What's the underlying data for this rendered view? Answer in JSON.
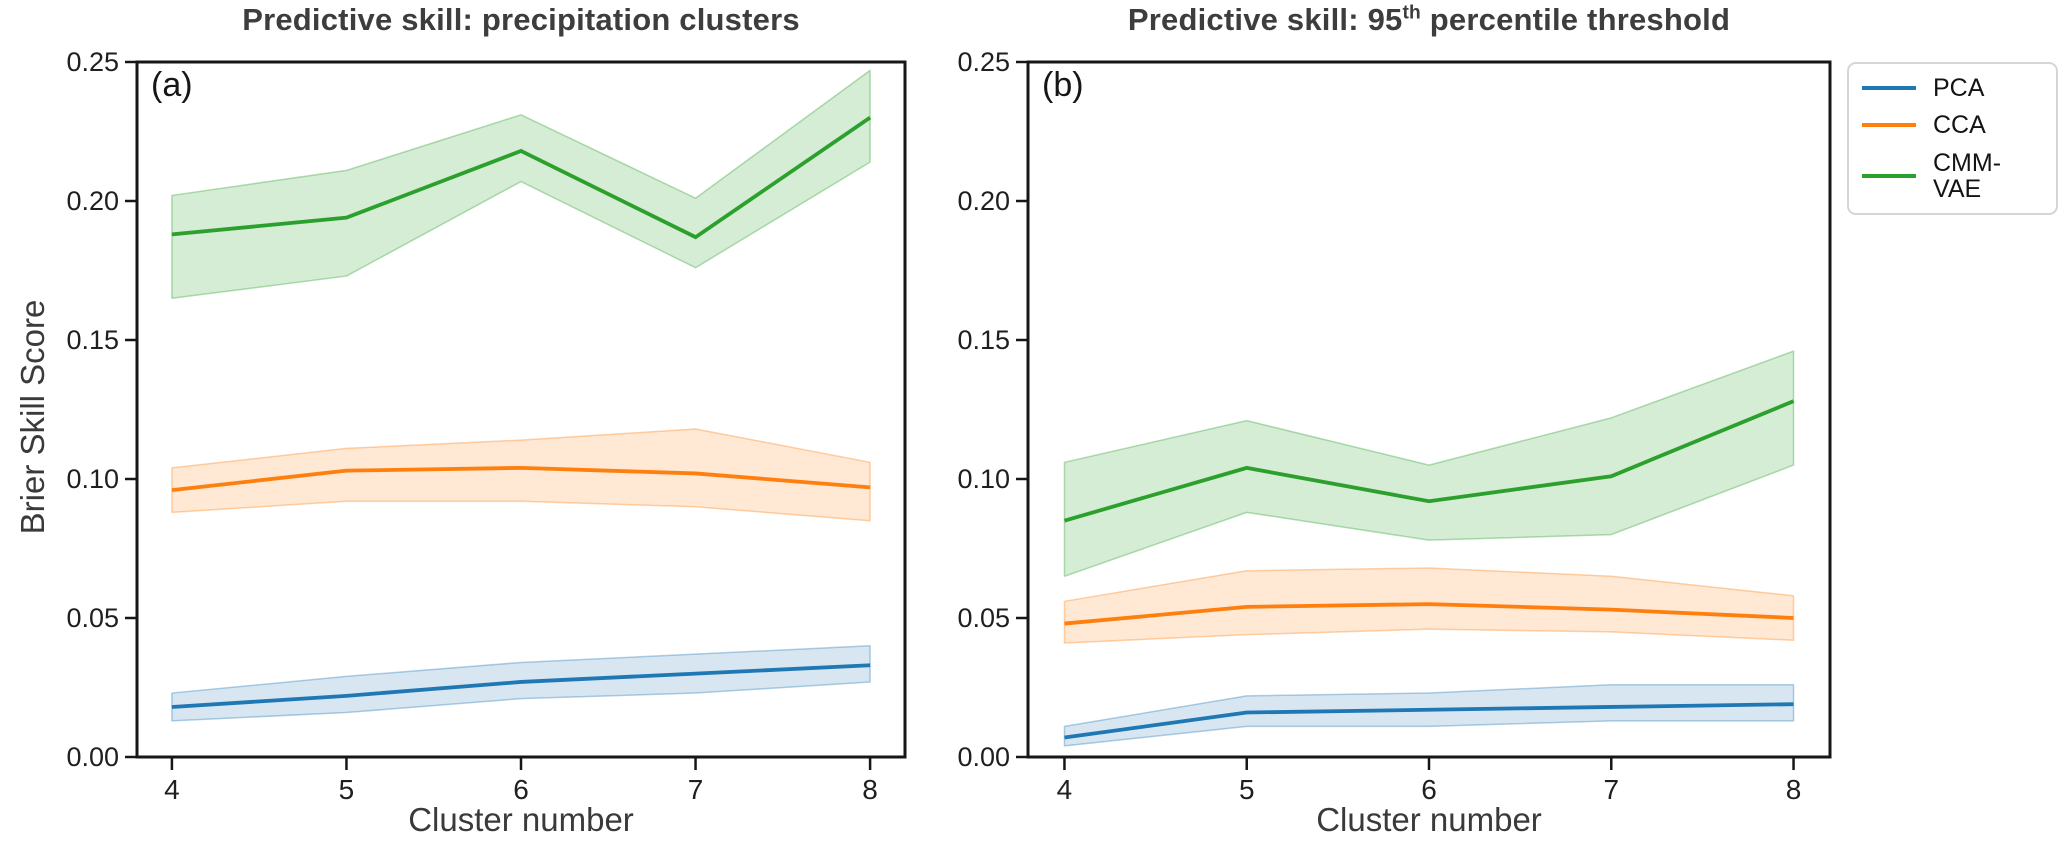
{
  "figure": {
    "xlabel": "Cluster number",
    "ylabel": "Brier Skill Score",
    "background": "#ffffff",
    "spine_color": "#161616",
    "tick_label_color": "#1f1f1f",
    "title_color": "#3d3d3d"
  },
  "panels": [
    {
      "letter": "(a)",
      "title": "Predictive skill: precipitation clusters"
    },
    {
      "letter": "(b)",
      "title_pre": "Predictive skill: 95",
      "title_sup": "th",
      "title_post": " percentile threshold"
    }
  ],
  "legend": {
    "items": [
      {
        "label": "PCA",
        "color": "#1f77b4"
      },
      {
        "label": "CCA",
        "color": "#ff7f0e"
      },
      {
        "label": "CMM-VAE",
        "color": "#2ca02c"
      }
    ]
  },
  "chart_data": [
    {
      "type": "line",
      "panel_label": "(a)",
      "title": "Predictive skill: precipitation clusters",
      "xlabel": "Cluster number",
      "ylabel": "Brier Skill Score",
      "x": [
        4,
        5,
        6,
        7,
        8
      ],
      "xticklabels": [
        "4",
        "5",
        "6",
        "7",
        "8"
      ],
      "xlim": [
        3.8,
        8.2
      ],
      "ylim": [
        0,
        0.25
      ],
      "yticks": [
        0.0,
        0.05,
        0.1,
        0.15,
        0.2,
        0.25
      ],
      "yticklabels": [
        "0.00",
        "0.05",
        "0.10",
        "0.15",
        "0.20",
        "0.25"
      ],
      "grid": false,
      "series": [
        {
          "name": "PCA",
          "color": "#1f77b4",
          "fill": "rgba(31,119,180,0.18)",
          "edge": "rgba(31,119,180,0.35)",
          "values": [
            0.018,
            0.022,
            0.027,
            0.03,
            0.033
          ],
          "band_lower": [
            0.013,
            0.016,
            0.021,
            0.023,
            0.027
          ],
          "band_upper": [
            0.023,
            0.029,
            0.034,
            0.037,
            0.04
          ]
        },
        {
          "name": "CCA",
          "color": "#ff7f0e",
          "fill": "rgba(255,127,14,0.18)",
          "edge": "rgba(255,127,14,0.35)",
          "values": [
            0.096,
            0.103,
            0.104,
            0.102,
            0.097
          ],
          "band_lower": [
            0.088,
            0.092,
            0.092,
            0.09,
            0.085
          ],
          "band_upper": [
            0.104,
            0.111,
            0.114,
            0.118,
            0.106
          ]
        },
        {
          "name": "CMM-VAE",
          "color": "#2ca02c",
          "fill": "rgba(44,160,44,0.20)",
          "edge": "rgba(44,160,44,0.35)",
          "values": [
            0.188,
            0.194,
            0.218,
            0.187,
            0.23
          ],
          "band_lower": [
            0.165,
            0.173,
            0.207,
            0.176,
            0.214
          ],
          "band_upper": [
            0.202,
            0.211,
            0.231,
            0.201,
            0.247
          ]
        }
      ]
    },
    {
      "type": "line",
      "panel_label": "(b)",
      "title": "Predictive skill: 95th percentile threshold",
      "xlabel": "Cluster number",
      "ylabel": "Brier Skill Score",
      "x": [
        4,
        5,
        6,
        7,
        8
      ],
      "xticklabels": [
        "4",
        "5",
        "6",
        "7",
        "8"
      ],
      "xlim": [
        3.8,
        8.2
      ],
      "ylim": [
        0,
        0.25
      ],
      "yticks": [
        0.0,
        0.05,
        0.1,
        0.15,
        0.2,
        0.25
      ],
      "yticklabels": [
        "0.00",
        "0.05",
        "0.10",
        "0.15",
        "0.20",
        "0.25"
      ],
      "grid": false,
      "series": [
        {
          "name": "PCA",
          "color": "#1f77b4",
          "fill": "rgba(31,119,180,0.18)",
          "edge": "rgba(31,119,180,0.35)",
          "values": [
            0.007,
            0.016,
            0.017,
            0.018,
            0.019
          ],
          "band_lower": [
            0.004,
            0.011,
            0.011,
            0.013,
            0.013
          ],
          "band_upper": [
            0.011,
            0.022,
            0.023,
            0.026,
            0.026
          ]
        },
        {
          "name": "CCA",
          "color": "#ff7f0e",
          "fill": "rgba(255,127,14,0.18)",
          "edge": "rgba(255,127,14,0.35)",
          "values": [
            0.048,
            0.054,
            0.055,
            0.053,
            0.05
          ],
          "band_lower": [
            0.041,
            0.044,
            0.046,
            0.045,
            0.042
          ],
          "band_upper": [
            0.056,
            0.067,
            0.068,
            0.065,
            0.058
          ]
        },
        {
          "name": "CMM-VAE",
          "color": "#2ca02c",
          "fill": "rgba(44,160,44,0.20)",
          "edge": "rgba(44,160,44,0.35)",
          "values": [
            0.085,
            0.104,
            0.092,
            0.101,
            0.128
          ],
          "band_lower": [
            0.065,
            0.088,
            0.078,
            0.08,
            0.105
          ],
          "band_upper": [
            0.106,
            0.121,
            0.105,
            0.122,
            0.146
          ]
        }
      ]
    }
  ]
}
